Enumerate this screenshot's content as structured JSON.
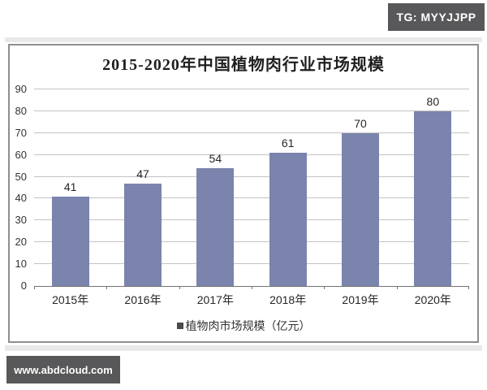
{
  "watermarks": {
    "telegram": "TG: MYYJJPP",
    "website": "www.abdcloud.com"
  },
  "colors": {
    "badge_bg": "#58585a",
    "strip": "#e9e9e9"
  },
  "chart_data": {
    "type": "bar",
    "title": "2015-2020年中国植物肉行业市场规模",
    "categories": [
      "2015年",
      "2016年",
      "2017年",
      "2018年",
      "2019年",
      "2020年"
    ],
    "values": [
      41,
      47,
      54,
      61,
      70,
      80
    ],
    "legend": "植物肉市场规模（亿元）",
    "xlabel": "",
    "ylabel": "",
    "ylim": [
      0,
      90
    ],
    "yticks": [
      0,
      10,
      20,
      30,
      40,
      50,
      60,
      70,
      80,
      90
    ],
    "grid": true,
    "value_labels": true,
    "legend_position": "bottom",
    "bar_color": "#7b84ac",
    "legend_marker_color": "#4a4a4a",
    "gridline_color": "#c3c3c3",
    "axis_color": "#737373"
  }
}
